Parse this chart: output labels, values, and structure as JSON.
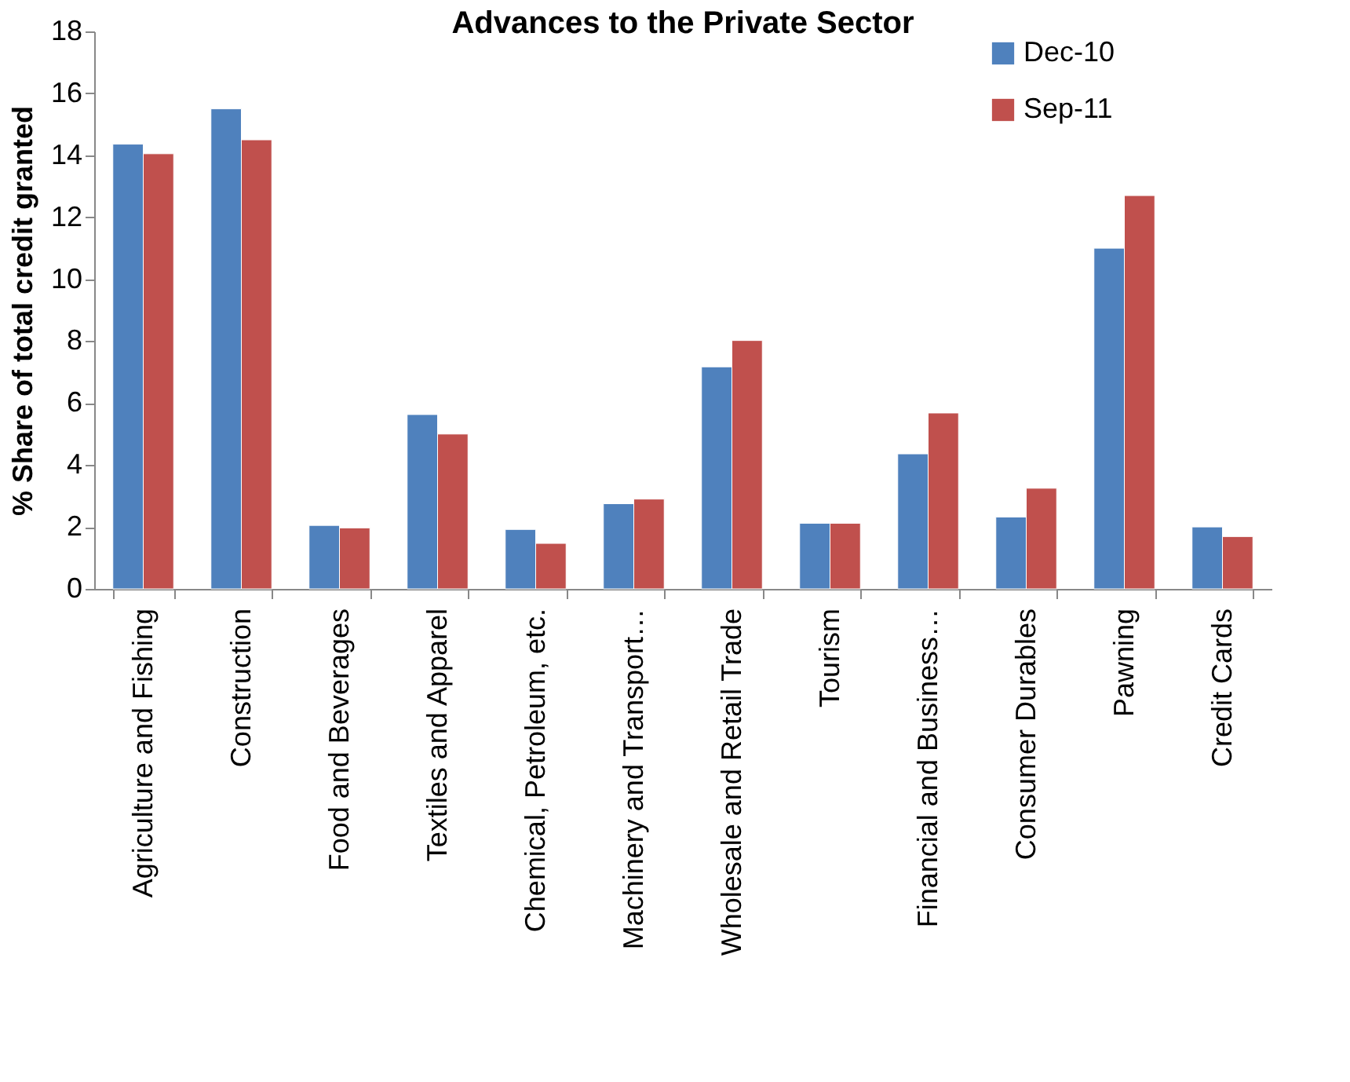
{
  "chart_data": {
    "type": "bar",
    "title": "Advances to the Private Sector",
    "ylabel": "% Share of total credit granted",
    "categories": [
      "Agriculture and Fishing",
      "Construction",
      "Food and Beverages",
      "Textiles and Apparel",
      "Chemical, Petroleum, etc.",
      "Machinery and Transport…",
      "Wholesale and Retail Trade",
      "Tourism",
      "Financial and Business…",
      "Consumer Durables",
      "Pawning",
      "Credit Cards"
    ],
    "series": [
      {
        "name": "Dec-10",
        "color": "#4f81bd",
        "values": [
          14.36,
          15.5,
          2.05,
          5.63,
          1.92,
          2.75,
          7.17,
          2.12,
          4.36,
          2.32,
          11.0,
          2.0
        ]
      },
      {
        "name": "Sep-11",
        "color": "#c0504d",
        "values": [
          14.05,
          14.5,
          1.97,
          5.0,
          1.47,
          2.9,
          8.02,
          2.12,
          5.68,
          3.25,
          12.7,
          1.69
        ]
      }
    ],
    "ylim": [
      0,
      18
    ],
    "yticks": [
      0,
      2,
      4,
      6,
      8,
      10,
      12,
      14,
      16,
      18
    ],
    "grid": false,
    "legend": "top right"
  }
}
